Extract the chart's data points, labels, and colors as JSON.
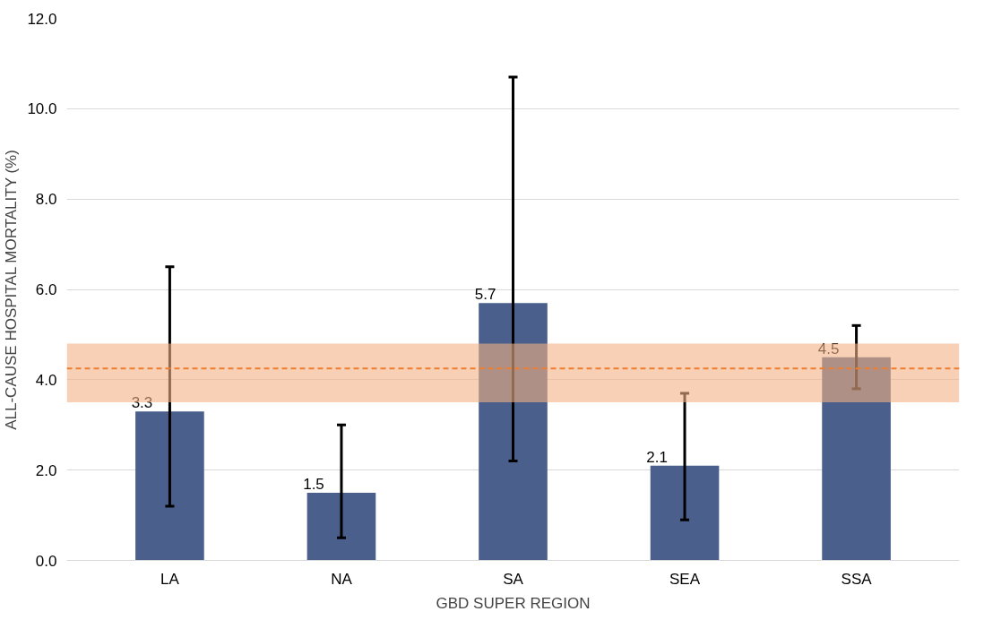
{
  "chart_data": {
    "type": "bar",
    "xlabel": "GBD SUPER REGION",
    "ylabel": "ALL-CAUSE HOSPITAL MORTALITY (%)",
    "categories": [
      "LA",
      "NA",
      "SA",
      "SEA",
      "SSA"
    ],
    "values": [
      3.3,
      1.5,
      5.7,
      2.1,
      4.5
    ],
    "color": "#4a5f8c",
    "errors": [
      [
        1.2,
        6.5
      ],
      [
        0.5,
        3.0
      ],
      [
        2.2,
        10.7
      ],
      [
        0.9,
        3.7
      ],
      [
        3.8,
        5.2
      ]
    ],
    "data_labels": true,
    "ylim": [
      0,
      12
    ],
    "yticks": [
      {
        "value": 0,
        "label": "0.0"
      },
      {
        "value": 2,
        "label": "2.0"
      },
      {
        "value": 4,
        "label": "4.0"
      },
      {
        "value": 6,
        "label": "6.0"
      },
      {
        "value": 8,
        "label": "8.0"
      },
      {
        "value": 10,
        "label": "10.0"
      },
      {
        "value": 12,
        "label": "12.0"
      }
    ],
    "grid": "y",
    "bands": [
      {
        "axis": "y",
        "from": 3.5,
        "to": 4.8,
        "color": "#f4b183"
      }
    ],
    "ref_lines": [
      {
        "axis": "y",
        "value": 4.25,
        "color": "#ed7d31",
        "line_style": "dashed"
      }
    ]
  }
}
